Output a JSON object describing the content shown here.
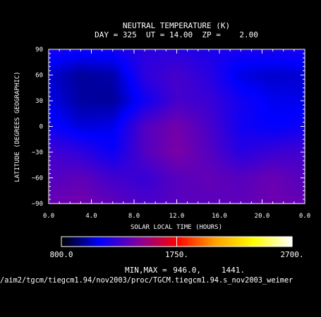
{
  "chart_data": {
    "type": "heatmap",
    "title": "NEUTRAL TEMPERATURE (K)",
    "subtitle": "DAY = 325  UT = 14.00  ZP =    2.00",
    "xlabel": "SOLAR LOCAL TIME (HOURS)",
    "ylabel": "LATITUDE (DEGREES GEOGRAPHIC)",
    "xlim": [
      0,
      24
    ],
    "ylim": [
      -90,
      90
    ],
    "x_ticks": [
      "0.0",
      "4.0",
      "8.0",
      "12.0",
      "16.0",
      "20.0",
      "0.0"
    ],
    "y_ticks": [
      "90",
      "60",
      "30",
      "0",
      "−30",
      "−60",
      "−90"
    ],
    "colorbar": {
      "range": [
        800,
        2700
      ],
      "tick_labels": [
        "800.0",
        "1750.",
        "2700."
      ],
      "colors": [
        "#000000",
        "#0000ff",
        "#8000a0",
        "#ff0000",
        "#ffa000",
        "#ffff00",
        "#ffffff"
      ]
    },
    "minmax_label": "MIN,MAX =",
    "min_value": "946.0,",
    "max_value": "1441.",
    "footer": "/aim2/tgcm/tiegcm1.94/nov2003/proc/TGCM.tiegcm1.94.s_nov2003_weimer",
    "field": {
      "lt": [
        0,
        3,
        6,
        9,
        12,
        15,
        18,
        21,
        24
      ],
      "lat": [
        90,
        60,
        30,
        0,
        -30,
        -60,
        -90
      ],
      "temperature_K": [
        [
          1180,
          1150,
          1160,
          1220,
          1210,
          1180,
          1170,
          1180,
          1180
        ],
        [
          1060,
          990,
          1010,
          1230,
          1290,
          1220,
          1080,
          1050,
          1060
        ],
        [
          1090,
          1000,
          990,
          1150,
          1290,
          1260,
          1160,
          1100,
          1090
        ],
        [
          1150,
          1070,
          1090,
          1320,
          1400,
          1300,
          1160,
          1120,
          1150
        ],
        [
          1280,
          1230,
          1140,
          1320,
          1420,
          1330,
          1210,
          1260,
          1280
        ],
        [
          1320,
          1350,
          1280,
          1250,
          1330,
          1360,
          1330,
          1380,
          1320
        ],
        [
          1370,
          1400,
          1350,
          1300,
          1330,
          1340,
          1350,
          1380,
          1370
        ]
      ]
    }
  }
}
